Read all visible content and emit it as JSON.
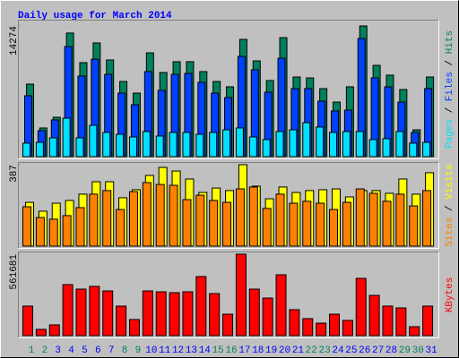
{
  "chart_data": [
    {
      "type": "bar",
      "title": "Daily usage for March 2014",
      "legend_separator": " / ",
      "ylim": [
        0,
        14274
      ],
      "yticks": [
        14274
      ],
      "series": [
        {
          "name": "Pages",
          "color": "#00e0ff",
          "values": [
            1470,
            1560,
            2050,
            4200,
            2050,
            3420,
            2640,
            2440,
            2150,
            2740,
            2250,
            2640,
            2640,
            2440,
            2640,
            2930,
            3130,
            2150,
            1860,
            2740,
            2930,
            3710,
            3230,
            2640,
            2740,
            2740,
            1860,
            1960,
            2740,
            1470,
            1560
          ]
        },
        {
          "name": "Files",
          "color": "#0040ff",
          "values": [
            6650,
            2840,
            4010,
            12020,
            8800,
            10650,
            8990,
            6940,
            5670,
            9290,
            7230,
            8990,
            9090,
            8110,
            6940,
            6450,
            10950,
            9480,
            7040,
            10750,
            7430,
            7430,
            6060,
            4990,
            5080,
            12900,
            8600,
            7620,
            5960,
            2640,
            7430
          ]
        },
        {
          "name": "Hits",
          "color": "#00805c",
          "values": [
            7920,
            3130,
            4300,
            13500,
            10270,
            12420,
            10560,
            8210,
            6940,
            11340,
            9190,
            10370,
            10370,
            9290,
            8210,
            7630,
            12810,
            10460,
            8310,
            13000,
            8700,
            8600,
            7430,
            5960,
            7630,
            14274,
            9970,
            8900,
            7330,
            2930,
            8700
          ]
        }
      ]
    },
    {
      "type": "bar",
      "legend_separator": " / ",
      "ylim": [
        0,
        387
      ],
      "yticks": [
        387
      ],
      "series": [
        {
          "name": "Sites",
          "color": "#ff8000",
          "values": [
            187,
            136,
            128,
            145,
            183,
            247,
            264,
            174,
            259,
            302,
            293,
            289,
            221,
            242,
            217,
            208,
            272,
            281,
            179,
            247,
            204,
            213,
            204,
            174,
            208,
            272,
            251,
            213,
            247,
            191,
            264
          ]
        },
        {
          "name": "Visits",
          "color": "#ffff00",
          "values": [
            208,
            166,
            204,
            217,
            247,
            306,
            306,
            230,
            268,
            336,
            374,
            357,
            319,
            255,
            276,
            264,
            387,
            285,
            225,
            281,
            255,
            264,
            268,
            272,
            234,
            264,
            264,
            251,
            319,
            247,
            349
          ]
        }
      ]
    },
    {
      "type": "bar",
      "ylim": [
        0,
        561681
      ],
      "yticks": [
        561681
      ],
      "categories": [
        "1",
        "2",
        "3",
        "4",
        "5",
        "6",
        "7",
        "8",
        "9",
        "10",
        "11",
        "12",
        "13",
        "14",
        "15",
        "16",
        "17",
        "18",
        "19",
        "20",
        "21",
        "22",
        "23",
        "24",
        "25",
        "26",
        "27",
        "28",
        "29",
        "30",
        "31"
      ],
      "category_colors": [
        "#00805c",
        "#00805c",
        "#0000ff",
        "#0000ff",
        "#0000ff",
        "#0000ff",
        "#0000ff",
        "#00805c",
        "#00805c",
        "#0000ff",
        "#0000ff",
        "#0000ff",
        "#0000ff",
        "#0000ff",
        "#00805c",
        "#00805c",
        "#0000ff",
        "#0000ff",
        "#0000ff",
        "#0000ff",
        "#0000ff",
        "#00805c",
        "#00805c",
        "#0000ff",
        "#0000ff",
        "#0000ff",
        "#0000ff",
        "#0000ff",
        "#00805c",
        "#00805c",
        "#0000ff"
      ],
      "series": [
        {
          "name": "KBytes",
          "color": "#ff0000",
          "values": [
            203700,
            43200,
            74100,
            351800,
            320900,
            339500,
            308600,
            203700,
            111100,
            308600,
            302400,
            296300,
            302400,
            407400,
            290100,
            148100,
            561681,
            320900,
            259200,
            419700,
            179000,
            117300,
            86400,
            148100,
            104900,
            395000,
            277700,
            203700,
            191300,
            61700,
            203700
          ]
        }
      ]
    }
  ]
}
